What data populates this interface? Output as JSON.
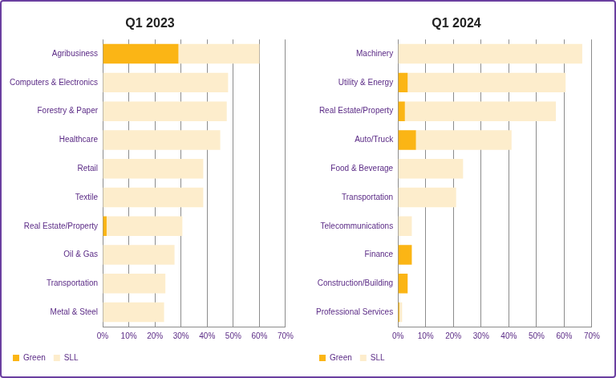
{
  "chart_data": [
    {
      "type": "bar",
      "title": "Q1 2023",
      "orientation": "horizontal",
      "stacked": true,
      "grid": true,
      "legend": "bottom-left",
      "categories": [
        "Agribusiness",
        "Computers & Electronics",
        "Forestry & Paper",
        "Healthcare",
        "Retail",
        "Textile",
        "Real Estate/Property",
        "Oil & Gas",
        "Transportation",
        "Metal & Steel"
      ],
      "series": [
        {
          "name": "Green",
          "color": "#fbb515",
          "values": [
            29,
            0,
            0,
            0,
            0,
            0,
            1.5,
            0,
            0,
            0
          ]
        },
        {
          "name": "SLL",
          "color": "#fdedcc",
          "values": [
            31,
            48,
            47.5,
            45,
            38.5,
            38.5,
            29,
            27.5,
            24,
            23.5
          ]
        }
      ],
      "xlim": [
        0,
        70
      ],
      "xticks": [
        {
          "value": 0,
          "label": "0%"
        },
        {
          "value": 10,
          "label": "10%"
        },
        {
          "value": 20,
          "label": "20%"
        },
        {
          "value": 30,
          "label": "30%"
        },
        {
          "value": 40,
          "label": "40%"
        },
        {
          "value": 50,
          "label": "50%"
        },
        {
          "value": 60,
          "label": "60%"
        },
        {
          "value": 70,
          "label": "70%"
        }
      ]
    },
    {
      "type": "bar",
      "title": "Q1 2024",
      "orientation": "horizontal",
      "stacked": true,
      "grid": true,
      "legend": "bottom-left",
      "categories": [
        "Machinery",
        "Utility & Energy",
        "Real Estate/Property",
        "Auto/Truck",
        "Food & Beverage",
        "Transportation",
        "Telecommunications",
        "Finance",
        "Construction/Building",
        "Professional Services"
      ],
      "series": [
        {
          "name": "Green",
          "color": "#fbb515",
          "values": [
            0,
            3.5,
            2.5,
            6.5,
            0,
            0,
            0,
            5,
            3.5,
            0.5
          ]
        },
        {
          "name": "SLL",
          "color": "#fdedcc",
          "values": [
            66.5,
            57,
            54.5,
            34.5,
            23.5,
            21,
            5,
            0,
            0,
            1
          ]
        }
      ],
      "xlim": [
        0,
        70
      ],
      "xticks": [
        {
          "value": 0,
          "label": "0%"
        },
        {
          "value": 10,
          "label": "10%"
        },
        {
          "value": 20,
          "label": "20%"
        },
        {
          "value": 30,
          "label": "30%"
        },
        {
          "value": 40,
          "label": "40%"
        },
        {
          "value": 50,
          "label": "50%"
        },
        {
          "value": 60,
          "label": "60%"
        },
        {
          "value": 70,
          "label": "70%"
        }
      ]
    }
  ]
}
